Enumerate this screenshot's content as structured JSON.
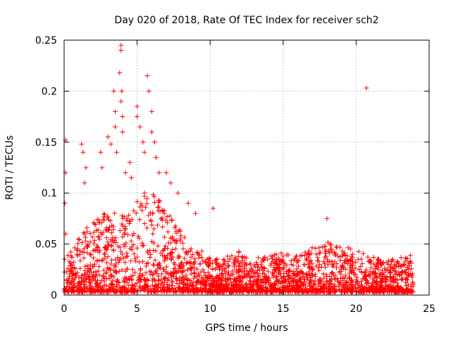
{
  "chart_data": {
    "type": "scatter",
    "title": "Day 020 of 2018, Rate Of TEC Index for receiver sch2",
    "xlabel": "GPS time / hours",
    "ylabel": "ROTI / TECUs",
    "xlim": [
      0,
      25
    ],
    "ylim": [
      0,
      0.25
    ],
    "x_ticks": [
      0,
      5,
      10,
      15,
      20,
      25
    ],
    "x_tick_labels": [
      "0",
      "5",
      "10",
      "15",
      "20",
      "25"
    ],
    "y_ticks": [
      0,
      0.05,
      0.1,
      0.15,
      0.2,
      0.25
    ],
    "y_tick_labels": [
      "0",
      "0.05",
      "0.1",
      "0.15",
      "0.2",
      "0.25"
    ],
    "grid": true,
    "marker": "plus",
    "series": [
      {
        "name": "ROTI",
        "color": "#ff0000",
        "x_range_hours": [
          0,
          23.9
        ],
        "points": [
          [
            0.1,
            0.152
          ],
          [
            0.1,
            0.12
          ],
          [
            0.05,
            0.09
          ],
          [
            0.1,
            0.06
          ],
          [
            1.2,
            0.148
          ],
          [
            1.3,
            0.14
          ],
          [
            1.5,
            0.125
          ],
          [
            1.4,
            0.11
          ],
          [
            2.5,
            0.14
          ],
          [
            2.6,
            0.125
          ],
          [
            3.0,
            0.155
          ],
          [
            3.2,
            0.148
          ],
          [
            3.4,
            0.2
          ],
          [
            3.5,
            0.18
          ],
          [
            3.5,
            0.165
          ],
          [
            3.6,
            0.14
          ],
          [
            3.8,
            0.218
          ],
          [
            3.9,
            0.245
          ],
          [
            3.9,
            0.24
          ],
          [
            3.95,
            0.2
          ],
          [
            3.9,
            0.19
          ],
          [
            4.0,
            0.175
          ],
          [
            4.0,
            0.16
          ],
          [
            4.5,
            0.13
          ],
          [
            4.6,
            0.115
          ],
          [
            4.2,
            0.12
          ],
          [
            5.0,
            0.185
          ],
          [
            5.0,
            0.175
          ],
          [
            5.2,
            0.165
          ],
          [
            5.4,
            0.15
          ],
          [
            5.5,
            0.14
          ],
          [
            5.7,
            0.215
          ],
          [
            5.8,
            0.2
          ],
          [
            6.0,
            0.18
          ],
          [
            6.0,
            0.16
          ],
          [
            6.2,
            0.15
          ],
          [
            6.3,
            0.135
          ],
          [
            6.5,
            0.12
          ],
          [
            7.0,
            0.12
          ],
          [
            7.3,
            0.11
          ],
          [
            7.8,
            0.1
          ],
          [
            8.5,
            0.09
          ],
          [
            9.0,
            0.08
          ],
          [
            10.2,
            0.085
          ],
          [
            18.0,
            0.075
          ],
          [
            20.7,
            0.203
          ]
        ]
      }
    ],
    "density_envelope": [
      [
        0,
        0.035
      ],
      [
        0.5,
        0.04
      ],
      [
        1,
        0.055
      ],
      [
        1.5,
        0.065
      ],
      [
        2,
        0.07
      ],
      [
        2.5,
        0.075
      ],
      [
        3,
        0.08
      ],
      [
        3.5,
        0.085
      ],
      [
        4,
        0.08
      ],
      [
        4.5,
        0.075
      ],
      [
        5,
        0.09
      ],
      [
        5.5,
        0.1
      ],
      [
        6,
        0.1
      ],
      [
        6.5,
        0.09
      ],
      [
        7,
        0.085
      ],
      [
        7.5,
        0.07
      ],
      [
        8,
        0.06
      ],
      [
        8.5,
        0.05
      ],
      [
        9,
        0.045
      ],
      [
        9.5,
        0.04
      ],
      [
        10,
        0.035
      ],
      [
        11,
        0.035
      ],
      [
        12,
        0.04
      ],
      [
        13,
        0.035
      ],
      [
        14,
        0.035
      ],
      [
        15,
        0.04
      ],
      [
        16,
        0.035
      ],
      [
        17,
        0.045
      ],
      [
        18,
        0.05
      ],
      [
        19,
        0.045
      ],
      [
        20,
        0.045
      ],
      [
        21,
        0.035
      ],
      [
        22,
        0.03
      ],
      [
        23,
        0.035
      ],
      [
        23.9,
        0.04
      ]
    ]
  }
}
